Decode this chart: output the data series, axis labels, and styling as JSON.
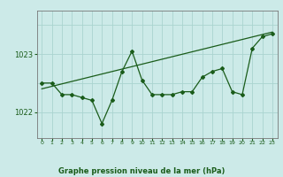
{
  "title": "Graphe pression niveau de la mer (hPa)",
  "background_color": "#cceae8",
  "grid_color": "#aad4d0",
  "line_color": "#1a5c1a",
  "xlim": [
    -0.5,
    23.5
  ],
  "ylim": [
    1021.55,
    1023.75
  ],
  "yticks": [
    1022,
    1023
  ],
  "xticks": [
    0,
    1,
    2,
    3,
    4,
    5,
    6,
    7,
    8,
    9,
    10,
    11,
    12,
    13,
    14,
    15,
    16,
    17,
    18,
    19,
    20,
    21,
    22,
    23
  ],
  "hours": [
    0,
    1,
    2,
    3,
    4,
    5,
    6,
    7,
    8,
    9,
    10,
    11,
    12,
    13,
    14,
    15,
    16,
    17,
    18,
    19,
    20,
    21,
    22,
    23
  ],
  "pressure": [
    1022.5,
    1022.5,
    1022.3,
    1022.3,
    1022.25,
    1022.2,
    1021.8,
    1022.2,
    1022.7,
    1023.05,
    1022.55,
    1022.3,
    1022.3,
    1022.3,
    1022.35,
    1022.35,
    1022.6,
    1022.7,
    1022.75,
    1022.35,
    1022.3,
    1023.1,
    1023.3,
    1023.35
  ],
  "trend_x": [
    0,
    23
  ],
  "trend_y": [
    1022.4,
    1023.38
  ]
}
